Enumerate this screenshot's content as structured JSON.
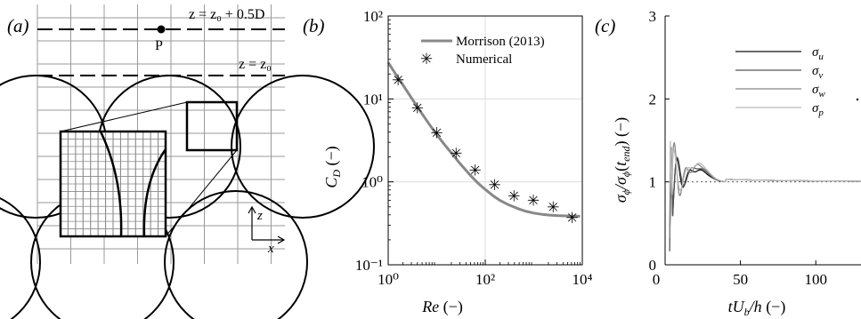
{
  "panels": {
    "a": {
      "label": "(a)",
      "upper_plane": "z = z₀ + 0.5D",
      "lower_plane": "z = z₀",
      "point_label": "P",
      "axis_z": "z",
      "axis_x": "x"
    },
    "b": {
      "label": "(b)"
    },
    "c": {
      "label": "(c)"
    }
  },
  "chart_data": [
    {
      "panel": "b",
      "type": "line",
      "title": "",
      "xlabel": "Re (−)",
      "ylabel": "C_D (−)",
      "xscale": "log",
      "yscale": "log",
      "xlim": [
        1,
        10000
      ],
      "ylim": [
        0.1,
        100
      ],
      "xticks": [
        1,
        100,
        10000
      ],
      "xtick_labels": [
        "10⁰",
        "10²",
        "10⁴"
      ],
      "yticks": [
        0.1,
        1,
        10,
        100
      ],
      "ytick_labels": [
        "10⁻¹",
        "10⁰",
        "10¹",
        "10²"
      ],
      "grid": true,
      "legend": "top-right",
      "colors": {
        "morrison": "#888888",
        "numerical": "#000000"
      },
      "series": [
        {
          "name": "Morrison (2013)",
          "kind": "line",
          "x": [
            1,
            1.5,
            2,
            3,
            5,
            7,
            10,
            15,
            20,
            30,
            50,
            70,
            100,
            150,
            200,
            300,
            500,
            700,
            1000,
            1500,
            2000,
            3000,
            5000,
            7000,
            9000
          ],
          "y": [
            27.5,
            19.0,
            14.8,
            10.3,
            6.6,
            4.95,
            3.7,
            2.74,
            2.24,
            1.67,
            1.19,
            0.97,
            0.81,
            0.67,
            0.6,
            0.53,
            0.47,
            0.44,
            0.42,
            0.405,
            0.398,
            0.392,
            0.388,
            0.386,
            0.385
          ]
        },
        {
          "name": "Numerical",
          "kind": "markers",
          "marker": "✳",
          "x": [
            1.6,
            4,
            10,
            25,
            62,
            156,
            390,
            980,
            2500,
            6200
          ],
          "y": [
            16.9,
            7.8,
            3.9,
            2.2,
            1.38,
            0.92,
            0.68,
            0.6,
            0.5,
            0.37
          ]
        }
      ]
    },
    {
      "panel": "c",
      "type": "line",
      "title": "",
      "xlabel": "tU_b/h (−)",
      "ylabel": "σ_ϕ / σ_ϕ(t_end) (−)",
      "xlim": [
        0,
        130
      ],
      "ylim": [
        0,
        3
      ],
      "xticks": [
        0,
        50,
        100
      ],
      "yticks": [
        0,
        1,
        2,
        3
      ],
      "grid": false,
      "legend": "top-right",
      "reference_line": 1,
      "series": [
        {
          "name": "σ_u",
          "color": "#111111"
        },
        {
          "name": "σ_v",
          "color": "#555555"
        },
        {
          "name": "σ_w",
          "color": "#888888"
        },
        {
          "name": "σ_p",
          "color": "#bbbbbb"
        }
      ]
    }
  ]
}
